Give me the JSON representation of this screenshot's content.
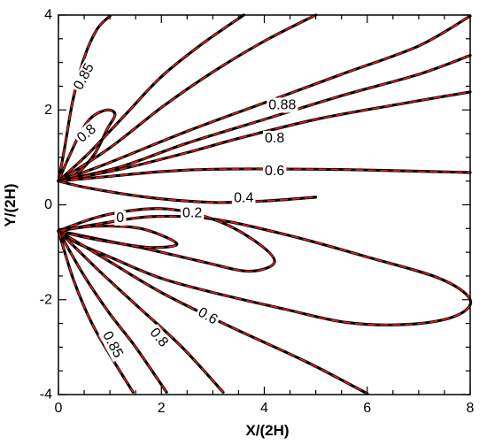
{
  "chart_data": {
    "type": "line",
    "xlabel": "X/(2H)",
    "ylabel": "Y/(2H)",
    "xlim": [
      0,
      8
    ],
    "ylim": [
      -4,
      4
    ],
    "xticks": [
      0,
      2,
      4,
      6,
      8
    ],
    "yticks": [
      -4,
      -2,
      0,
      2,
      4
    ],
    "xtick_labels": [
      "0",
      "2",
      "4",
      "6",
      "8"
    ],
    "ytick_labels": [
      "-4",
      "-2",
      "0",
      "2",
      "4"
    ],
    "grid": false,
    "series_style": {
      "base_color": "#000000",
      "overlay_color": "#e0201e"
    },
    "contours": [
      {
        "points": [
          [
            0,
            0.5
          ],
          [
            0.12,
            1.2
          ],
          [
            0.28,
            2.2
          ],
          [
            0.5,
            3.1
          ],
          [
            0.75,
            3.7
          ],
          [
            1.0,
            3.98
          ]
        ]
      },
      {
        "points": [
          [
            0,
            0.5
          ],
          [
            0.2,
            1.0
          ],
          [
            0.42,
            1.5
          ],
          [
            0.65,
            1.85
          ],
          [
            0.95,
            2.0
          ],
          [
            1.1,
            1.9
          ],
          [
            0.95,
            1.6
          ],
          [
            0.72,
            1.1
          ],
          [
            0.5,
            0.8
          ],
          [
            0.3,
            0.62
          ],
          [
            0,
            0.5
          ]
        ]
      },
      {
        "points": [
          [
            0,
            0.5
          ],
          [
            0.6,
            1.1
          ],
          [
            1.3,
            1.9
          ],
          [
            2.0,
            2.7
          ],
          [
            2.8,
            3.4
          ],
          [
            3.6,
            4.0
          ]
        ]
      },
      {
        "points": [
          [
            0,
            0.5
          ],
          [
            1.0,
            1.2
          ],
          [
            2.0,
            2.05
          ],
          [
            3.0,
            2.8
          ],
          [
            4.0,
            3.45
          ],
          [
            5.0,
            4.0
          ]
        ]
      },
      {
        "points": [
          [
            0,
            0.5
          ],
          [
            0.9,
            0.85
          ],
          [
            2.5,
            1.55
          ],
          [
            4.0,
            2.15
          ],
          [
            5.5,
            2.75
          ],
          [
            7.0,
            3.35
          ],
          [
            8.0,
            3.98
          ]
        ]
      },
      {
        "points": [
          [
            0,
            0.5
          ],
          [
            1.2,
            0.8
          ],
          [
            2.5,
            1.3
          ],
          [
            4.0,
            1.8
          ],
          [
            5.5,
            2.3
          ],
          [
            7.0,
            2.75
          ],
          [
            8.0,
            3.15
          ]
        ]
      },
      {
        "points": [
          [
            0,
            0.5
          ],
          [
            1.2,
            0.75
          ],
          [
            2.5,
            1.1
          ],
          [
            3.5,
            1.4
          ],
          [
            5.0,
            1.8
          ],
          [
            6.5,
            2.1
          ],
          [
            8.0,
            2.38
          ]
        ]
      },
      {
        "points": [
          [
            0,
            0.5
          ],
          [
            1.0,
            0.6
          ],
          [
            2.0,
            0.7
          ],
          [
            3.0,
            0.75
          ],
          [
            5.0,
            0.75
          ],
          [
            6.5,
            0.72
          ],
          [
            8.0,
            0.68
          ]
        ]
      },
      {
        "points": [
          [
            0,
            0.5
          ],
          [
            0.6,
            0.35
          ],
          [
            1.8,
            0.15
          ],
          [
            3.0,
            0.05
          ],
          [
            4.0,
            0.08
          ],
          [
            5.0,
            0.16
          ]
        ]
      },
      {
        "points": [
          [
            0,
            -0.55
          ],
          [
            0.8,
            -0.4
          ],
          [
            1.8,
            -0.25
          ],
          [
            3.0,
            -0.3
          ],
          [
            4.5,
            -0.65
          ],
          [
            6.0,
            -1.1
          ],
          [
            7.4,
            -1.55
          ],
          [
            8.0,
            -2.0
          ],
          [
            7.7,
            -2.35
          ],
          [
            6.8,
            -2.52
          ],
          [
            5.6,
            -2.48
          ],
          [
            4.4,
            -2.2
          ],
          [
            3.2,
            -1.9
          ],
          [
            2.0,
            -1.55
          ],
          [
            1.0,
            -1.1
          ],
          [
            0.35,
            -0.8
          ],
          [
            0,
            -0.55
          ]
        ]
      },
      {
        "points": [
          [
            0,
            -0.55
          ],
          [
            0.9,
            -0.22
          ],
          [
            2.0,
            -0.08
          ],
          [
            3.0,
            -0.3
          ],
          [
            3.8,
            -0.75
          ],
          [
            4.2,
            -1.2
          ],
          [
            3.7,
            -1.4
          ],
          [
            2.8,
            -1.2
          ],
          [
            1.8,
            -0.95
          ],
          [
            0.9,
            -0.75
          ],
          [
            0,
            -0.55
          ]
        ]
      },
      {
        "points": [
          [
            0,
            -0.55
          ],
          [
            0.7,
            -0.45
          ],
          [
            1.6,
            -0.5
          ],
          [
            2.3,
            -0.82
          ],
          [
            1.8,
            -0.9
          ],
          [
            1.1,
            -0.8
          ],
          [
            0.5,
            -0.68
          ],
          [
            0,
            -0.55
          ]
        ]
      },
      {
        "points": [
          [
            0,
            -0.55
          ],
          [
            1.0,
            -1.2
          ],
          [
            2.0,
            -1.85
          ],
          [
            3.3,
            -2.55
          ],
          [
            4.8,
            -3.3
          ],
          [
            6.0,
            -3.98
          ]
        ]
      },
      {
        "points": [
          [
            0,
            -0.55
          ],
          [
            0.8,
            -1.4
          ],
          [
            1.6,
            -2.2
          ],
          [
            2.4,
            -3.0
          ],
          [
            3.2,
            -3.95
          ]
        ]
      },
      {
        "points": [
          [
            0,
            -0.55
          ],
          [
            0.5,
            -1.5
          ],
          [
            1.0,
            -2.3
          ],
          [
            1.5,
            -3.0
          ],
          [
            2.1,
            -3.95
          ]
        ]
      },
      {
        "points": [
          [
            0,
            -0.55
          ],
          [
            0.3,
            -1.6
          ],
          [
            0.65,
            -2.5
          ],
          [
            1.05,
            -3.25
          ],
          [
            1.45,
            -3.95
          ]
        ]
      }
    ],
    "annotations": [
      {
        "text": "0.85",
        "x": 0.5,
        "y": 2.7,
        "rotate": -62
      },
      {
        "text": "0.8",
        "x": 0.55,
        "y": 1.5,
        "rotate": -40
      },
      {
        "text": "0.88",
        "x": 4.35,
        "y": 2.1,
        "rotate": 0
      },
      {
        "text": "0.8",
        "x": 4.2,
        "y": 1.4,
        "rotate": 0
      },
      {
        "text": "0.6",
        "x": 4.2,
        "y": 0.71,
        "rotate": 0
      },
      {
        "text": "0.4",
        "x": 3.6,
        "y": 0.14,
        "rotate": 0
      },
      {
        "text": "0.2",
        "x": 2.6,
        "y": -0.18,
        "rotate": 0
      },
      {
        "text": "0",
        "x": 1.2,
        "y": -0.28,
        "rotate": 0
      },
      {
        "text": "0.6",
        "x": 2.9,
        "y": -2.35,
        "rotate": 30
      },
      {
        "text": "0.8",
        "x": 1.95,
        "y": -2.8,
        "rotate": 50
      },
      {
        "text": "0.85",
        "x": 1.05,
        "y": -2.95,
        "rotate": 62
      }
    ]
  }
}
